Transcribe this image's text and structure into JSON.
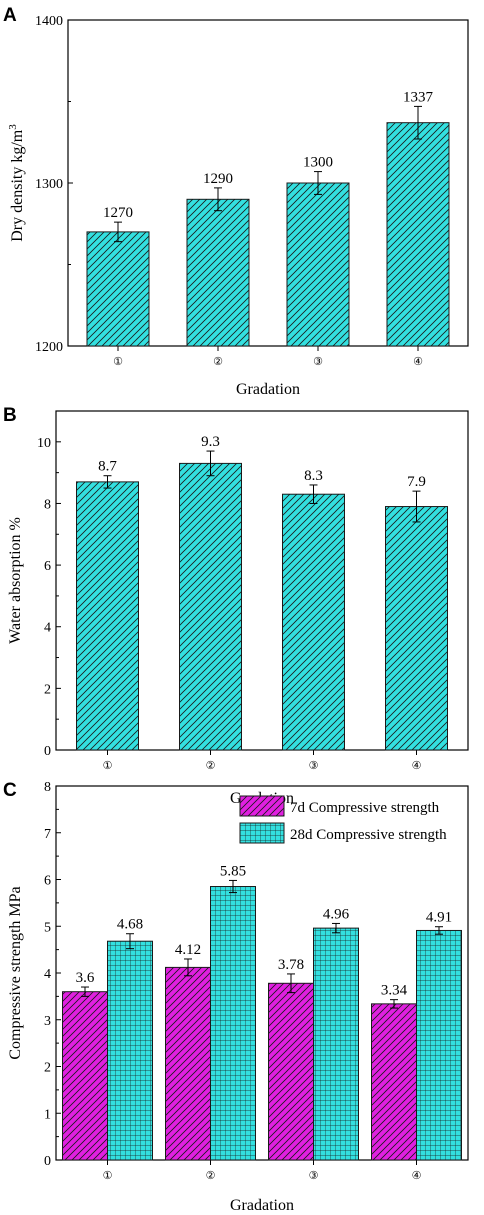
{
  "chart_data": [
    {
      "type": "bar",
      "panel_label": "A",
      "categories": [
        "①",
        "②",
        "③",
        "④"
      ],
      "xlabel": "Gradation",
      "ylabel": "Dry density kg/m",
      "ylabel_superscript": "3",
      "ylim": [
        1200,
        1400
      ],
      "yticks": [
        1200,
        1300,
        1400
      ],
      "grid": false,
      "series": [
        {
          "values": [
            1270,
            1290,
            1300,
            1337
          ],
          "errors": [
            6,
            7,
            7,
            10
          ],
          "data_labels": [
            "1270",
            "1290",
            "1300",
            "1337"
          ],
          "color": "#33E0E0",
          "pattern": "diagonal-hatch"
        }
      ]
    },
    {
      "type": "bar",
      "panel_label": "B",
      "categories": [
        "①",
        "②",
        "③",
        "④"
      ],
      "xlabel": "Gradation",
      "ylabel": "Water absorption %",
      "ylim": [
        0,
        11
      ],
      "yticks": [
        0,
        2,
        4,
        6,
        8,
        10
      ],
      "grid": false,
      "series": [
        {
          "values": [
            8.7,
            9.3,
            8.3,
            7.9
          ],
          "errors": [
            0.2,
            0.4,
            0.3,
            0.5
          ],
          "data_labels": [
            "8.7",
            "9.3",
            "8.3",
            "7.9"
          ],
          "color": "#33E0E0",
          "pattern": "diagonal-hatch"
        }
      ]
    },
    {
      "type": "bar",
      "panel_label": "C",
      "categories": [
        "①",
        "②",
        "③",
        "④"
      ],
      "xlabel": "Gradation",
      "ylabel": "Compressive strength MPa",
      "ylim": [
        0,
        8
      ],
      "yticks": [
        0,
        1,
        2,
        3,
        4,
        5,
        6,
        7,
        8
      ],
      "grid": false,
      "legend_position": "top-right",
      "series": [
        {
          "name": "7d Compressive strength",
          "values": [
            3.6,
            4.12,
            3.78,
            3.34
          ],
          "errors": [
            0.1,
            0.18,
            0.2,
            0.09
          ],
          "data_labels": [
            "3.6",
            "4.12",
            "3.78",
            "3.34"
          ],
          "color": "#E020E0",
          "pattern": "diagonal-hatch"
        },
        {
          "name": "28d Compressive strength",
          "values": [
            4.68,
            5.85,
            4.96,
            4.91
          ],
          "errors": [
            0.16,
            0.13,
            0.1,
            0.08
          ],
          "data_labels": [
            "4.68",
            "5.85",
            "4.96",
            "4.91"
          ],
          "color": "#33E0E0",
          "pattern": "grid-hatch"
        }
      ]
    }
  ]
}
